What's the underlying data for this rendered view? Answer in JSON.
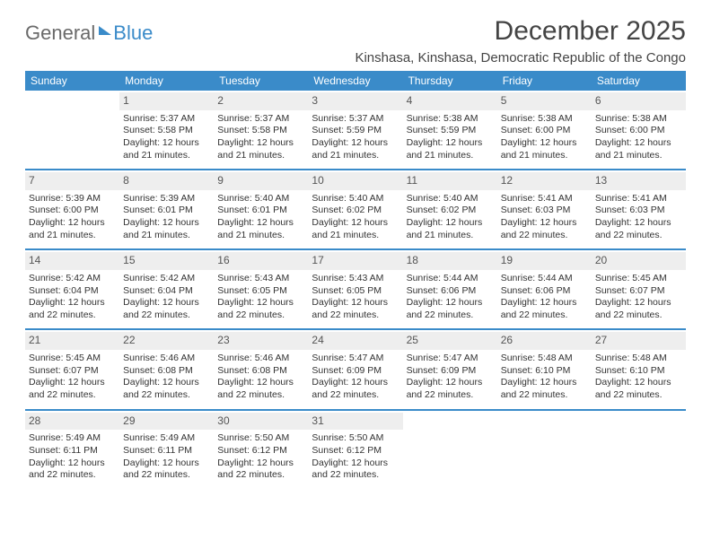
{
  "logo": {
    "part1": "General",
    "part2": "Blue"
  },
  "title": "December 2025",
  "location": "Kinshasa, Kinshasa, Democratic Republic of the Congo",
  "colors": {
    "accent": "#3a8bc9",
    "header_bg": "#3a8bc9",
    "header_text": "#ffffff",
    "daynum_bg": "#eeeeee",
    "text": "#333333",
    "logo_gray": "#6a6a6a"
  },
  "table": {
    "columns": [
      "Sunday",
      "Monday",
      "Tuesday",
      "Wednesday",
      "Thursday",
      "Friday",
      "Saturday"
    ],
    "weeks": [
      [
        null,
        {
          "n": "1",
          "sr": "5:37 AM",
          "ss": "5:58 PM",
          "dl": "12 hours and 21 minutes."
        },
        {
          "n": "2",
          "sr": "5:37 AM",
          "ss": "5:58 PM",
          "dl": "12 hours and 21 minutes."
        },
        {
          "n": "3",
          "sr": "5:37 AM",
          "ss": "5:59 PM",
          "dl": "12 hours and 21 minutes."
        },
        {
          "n": "4",
          "sr": "5:38 AM",
          "ss": "5:59 PM",
          "dl": "12 hours and 21 minutes."
        },
        {
          "n": "5",
          "sr": "5:38 AM",
          "ss": "6:00 PM",
          "dl": "12 hours and 21 minutes."
        },
        {
          "n": "6",
          "sr": "5:38 AM",
          "ss": "6:00 PM",
          "dl": "12 hours and 21 minutes."
        }
      ],
      [
        {
          "n": "7",
          "sr": "5:39 AM",
          "ss": "6:00 PM",
          "dl": "12 hours and 21 minutes."
        },
        {
          "n": "8",
          "sr": "5:39 AM",
          "ss": "6:01 PM",
          "dl": "12 hours and 21 minutes."
        },
        {
          "n": "9",
          "sr": "5:40 AM",
          "ss": "6:01 PM",
          "dl": "12 hours and 21 minutes."
        },
        {
          "n": "10",
          "sr": "5:40 AM",
          "ss": "6:02 PM",
          "dl": "12 hours and 21 minutes."
        },
        {
          "n": "11",
          "sr": "5:40 AM",
          "ss": "6:02 PM",
          "dl": "12 hours and 21 minutes."
        },
        {
          "n": "12",
          "sr": "5:41 AM",
          "ss": "6:03 PM",
          "dl": "12 hours and 22 minutes."
        },
        {
          "n": "13",
          "sr": "5:41 AM",
          "ss": "6:03 PM",
          "dl": "12 hours and 22 minutes."
        }
      ],
      [
        {
          "n": "14",
          "sr": "5:42 AM",
          "ss": "6:04 PM",
          "dl": "12 hours and 22 minutes."
        },
        {
          "n": "15",
          "sr": "5:42 AM",
          "ss": "6:04 PM",
          "dl": "12 hours and 22 minutes."
        },
        {
          "n": "16",
          "sr": "5:43 AM",
          "ss": "6:05 PM",
          "dl": "12 hours and 22 minutes."
        },
        {
          "n": "17",
          "sr": "5:43 AM",
          "ss": "6:05 PM",
          "dl": "12 hours and 22 minutes."
        },
        {
          "n": "18",
          "sr": "5:44 AM",
          "ss": "6:06 PM",
          "dl": "12 hours and 22 minutes."
        },
        {
          "n": "19",
          "sr": "5:44 AM",
          "ss": "6:06 PM",
          "dl": "12 hours and 22 minutes."
        },
        {
          "n": "20",
          "sr": "5:45 AM",
          "ss": "6:07 PM",
          "dl": "12 hours and 22 minutes."
        }
      ],
      [
        {
          "n": "21",
          "sr": "5:45 AM",
          "ss": "6:07 PM",
          "dl": "12 hours and 22 minutes."
        },
        {
          "n": "22",
          "sr": "5:46 AM",
          "ss": "6:08 PM",
          "dl": "12 hours and 22 minutes."
        },
        {
          "n": "23",
          "sr": "5:46 AM",
          "ss": "6:08 PM",
          "dl": "12 hours and 22 minutes."
        },
        {
          "n": "24",
          "sr": "5:47 AM",
          "ss": "6:09 PM",
          "dl": "12 hours and 22 minutes."
        },
        {
          "n": "25",
          "sr": "5:47 AM",
          "ss": "6:09 PM",
          "dl": "12 hours and 22 minutes."
        },
        {
          "n": "26",
          "sr": "5:48 AM",
          "ss": "6:10 PM",
          "dl": "12 hours and 22 minutes."
        },
        {
          "n": "27",
          "sr": "5:48 AM",
          "ss": "6:10 PM",
          "dl": "12 hours and 22 minutes."
        }
      ],
      [
        {
          "n": "28",
          "sr": "5:49 AM",
          "ss": "6:11 PM",
          "dl": "12 hours and 22 minutes."
        },
        {
          "n": "29",
          "sr": "5:49 AM",
          "ss": "6:11 PM",
          "dl": "12 hours and 22 minutes."
        },
        {
          "n": "30",
          "sr": "5:50 AM",
          "ss": "6:12 PM",
          "dl": "12 hours and 22 minutes."
        },
        {
          "n": "31",
          "sr": "5:50 AM",
          "ss": "6:12 PM",
          "dl": "12 hours and 22 minutes."
        },
        null,
        null,
        null
      ]
    ],
    "labels": {
      "sunrise": "Sunrise:",
      "sunset": "Sunset:",
      "daylight": "Daylight:"
    }
  }
}
